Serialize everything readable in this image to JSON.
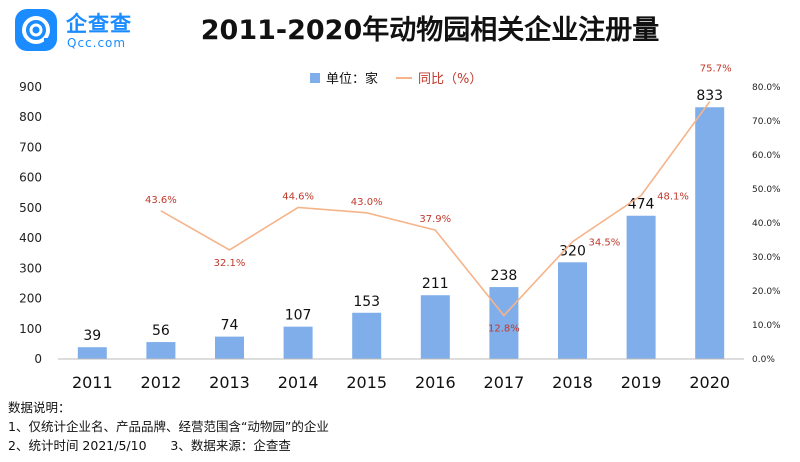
{
  "logo": {
    "name": "企查查",
    "domain": "Qcc.com"
  },
  "title": "2011-2020年动物园相关企业注册量",
  "legend": {
    "bar_label": "单位：家",
    "line_label": "同比（%）"
  },
  "notes": {
    "heading": "数据说明：",
    "line1": "1、仅统计企业名、产品品牌、经营范围含“动物园”的企业",
    "line2": "2、统计时间 2021/5/10      3、数据来源：企查查"
  },
  "colors": {
    "bar": "#7faeea",
    "line": "#f5b48a",
    "line_label": "#c0392b",
    "brand": "#1a8cff"
  },
  "chart_data": {
    "type": "bar",
    "categories": [
      "2011",
      "2012",
      "2013",
      "2014",
      "2015",
      "2016",
      "2017",
      "2018",
      "2019",
      "2020"
    ],
    "series": [
      {
        "name": "单位：家",
        "type": "bar",
        "axis": "left",
        "values": [
          39,
          56,
          74,
          107,
          153,
          211,
          238,
          320,
          474,
          833
        ]
      },
      {
        "name": "同比（%）",
        "type": "line",
        "axis": "right",
        "values": [
          null,
          43.6,
          32.1,
          44.6,
          43.0,
          37.9,
          12.8,
          34.5,
          48.1,
          75.7
        ],
        "labels": [
          "",
          "43.6%",
          "32.1%",
          "44.6%",
          "43.0%",
          "37.9%",
          "12.8%",
          "34.5%",
          "48.1%",
          "75.7%"
        ]
      }
    ],
    "ylim": [
      0,
      900
    ],
    "yticks": [
      "0",
      "100",
      "200",
      "300",
      "400",
      "500",
      "600",
      "700",
      "800",
      "900"
    ],
    "y2lim": [
      0,
      80
    ],
    "y2ticks": [
      "0.0%",
      "10.0%",
      "20.0%",
      "30.0%",
      "40.0%",
      "50.0%",
      "60.0%",
      "70.0%",
      "80.0%"
    ],
    "legend_position": "top-center",
    "grid": false
  }
}
